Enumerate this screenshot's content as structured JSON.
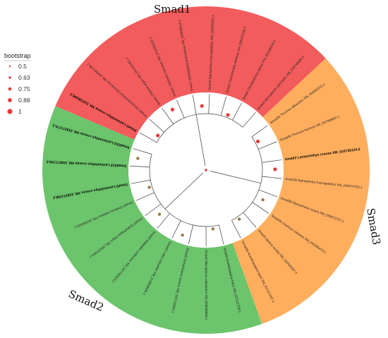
{
  "clades": [
    {
      "name": "Smad1",
      "color": "#f25c5c",
      "leaves": [
        {
          "label": "Smad1 Larimichthys crocea XM_010736346.3",
          "bold": true
        },
        {
          "label": "Smad1 Sinocyclocheilus rhinocerous XM_016567136.1",
          "bold": false
        },
        {
          "label": "Smad1 Channa argus XM_044112451.1",
          "bold": false
        },
        {
          "label": "Smad1 Chelmon rostratus XM_041936332.1",
          "bold": false
        },
        {
          "label": "Smad1 Epinephelus lanceolatus XM_033638514.1",
          "bold": false
        },
        {
          "label": "Smad1 Epinephelus fuscoguttatus XM_049580312.1",
          "bold": false
        },
        {
          "label": "Smad1 Oreochromis niloticus XM_005475169.4",
          "bold": false
        },
        {
          "label": "Smad1 Dicentrarchus labrax XM_051389190.1",
          "bold": false
        },
        {
          "label": "Smad1 Micropterus salmoides XM_038740066.1",
          "bold": false
        }
      ]
    },
    {
      "name": "Smad3",
      "color": "#ffae5e",
      "leaves": [
        {
          "label": "Smad3b Thunnus albacares XM_044362522.1",
          "bold": false
        },
        {
          "label": "Smad3b Thunnus thynnus XM_047568997.1",
          "bold": false
        },
        {
          "label": "Smad3 Larimichthys crocea XM_010735124.3",
          "bold": true
        },
        {
          "label": "Smad3b Epinephelus fuscoguttatus XM_049574703.1",
          "bold": false
        },
        {
          "label": "Smad3b Epinephelus moara XM_050072757.1",
          "bold": false
        },
        {
          "label": "Smad3b Chelmon rostratus XM_041936473.1",
          "bold": false
        },
        {
          "label": "Smad3 Sparus aurata XM_030429267.1",
          "bold": false
        },
        {
          "label": "Smad3b Acanthopagrus latus XM_037127407.1",
          "bold": false
        }
      ]
    },
    {
      "name": "Smad2",
      "color": "#6cc46c",
      "leaves": [
        {
          "label": "Smad2 Acanthopagrus latus XM_037112729.1",
          "bold": false
        },
        {
          "label": "Smad2 Micropterus salmoides XM_038696893.1",
          "bold": false
        },
        {
          "label": "Smad2 Oreochromis aureus XM_031742920.1",
          "bold": false
        },
        {
          "label": "Smad2 Lates calcarifer XM_018698534.1",
          "bold": false
        },
        {
          "label": "Smad2 Sebastes umbrosus XM_037781643.1",
          "bold": false
        },
        {
          "label": "Smad2 Scatophagus argus XM_046375341.1",
          "bold": false
        },
        {
          "label": "Smad2 Chelmon rostratus XM_041950593.1",
          "bold": false
        },
        {
          "label": "Smad2 Larimichthys crocea XM_019271768.2",
          "bold": true
        },
        {
          "label": "Smad2X2 Larimichthys crocea XM_019271769.2",
          "bold": true
        },
        {
          "label": "Smad2X3 Larimichthys crocea XM_019271770.2",
          "bold": true
        }
      ]
    }
  ],
  "legend": {
    "title": "bootstrap",
    "color": "#e23b3b",
    "items": [
      "0.5",
      "0.63",
      "0.75",
      "0.88",
      "1"
    ]
  },
  "node_colors": {
    "high_support": "#e23b3b",
    "low_support": "#9a7a45"
  }
}
